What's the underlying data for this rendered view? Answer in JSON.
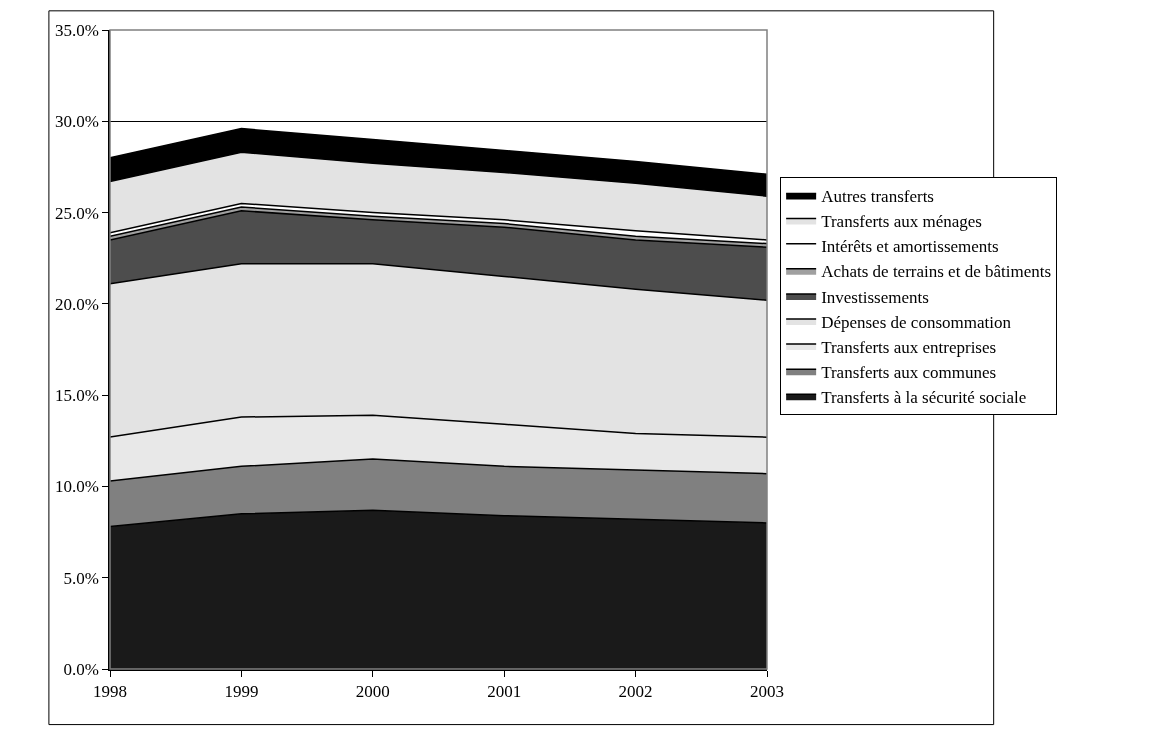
{
  "chart_data": {
    "type": "area",
    "stacked": true,
    "x": [
      1998,
      1999,
      2000,
      2001,
      2002,
      2003
    ],
    "xlim": [
      1998,
      2003
    ],
    "xticks": [
      1998,
      1999,
      2000,
      2001,
      2002,
      2003
    ],
    "ylim": [
      0,
      35
    ],
    "yticks": [
      {
        "value": 0,
        "label": "0.0%"
      },
      {
        "value": 5,
        "label": "5.0%"
      },
      {
        "value": 10,
        "label": "10.0%"
      },
      {
        "value": 15,
        "label": "15.0%"
      },
      {
        "value": 20,
        "label": "20.0%"
      },
      {
        "value": 25,
        "label": "25.0%"
      },
      {
        "value": 30,
        "label": "30.0%"
      },
      {
        "value": 35,
        "label": "35.0%"
      }
    ],
    "grid": "y",
    "legend": "right",
    "series": [
      {
        "name": "Transferts à la sécurité sociale",
        "color": "#1a1a1a",
        "values": [
          7.8,
          8.5,
          8.7,
          8.4,
          8.2,
          8.0
        ]
      },
      {
        "name": "Transferts aux communes",
        "color": "#808080",
        "values": [
          2.5,
          2.6,
          2.8,
          2.7,
          2.7,
          2.7
        ]
      },
      {
        "name": "Transferts aux entreprises",
        "color": "#e8e8e8",
        "values": [
          2.4,
          2.7,
          2.4,
          2.3,
          2.0,
          2.0
        ]
      },
      {
        "name": "Dépenses de consommation",
        "color": "#e3e3e3",
        "values": [
          8.4,
          8.4,
          8.3,
          8.1,
          7.9,
          7.5
        ]
      },
      {
        "name": "Investissements",
        "color": "#4d4d4d",
        "values": [
          2.4,
          2.9,
          2.4,
          2.7,
          2.7,
          2.9
        ]
      },
      {
        "name": "Achats de terrains et de bâtiments",
        "color": "#a0a0a0",
        "values": [
          0.2,
          0.2,
          0.2,
          0.2,
          0.2,
          0.2
        ]
      },
      {
        "name": "Intérêts et amortissements",
        "color": "#ffffff",
        "values": [
          0.2,
          0.2,
          0.2,
          0.2,
          0.3,
          0.2
        ]
      },
      {
        "name": "Transferts aux ménages",
        "color": "#e3e3e3",
        "values": [
          2.8,
          2.8,
          2.7,
          2.6,
          2.6,
          2.4
        ]
      },
      {
        "name": "Autres transferts",
        "color": "#000000",
        "values": [
          1.3,
          1.3,
          1.3,
          1.2,
          1.2,
          1.2
        ]
      }
    ]
  }
}
